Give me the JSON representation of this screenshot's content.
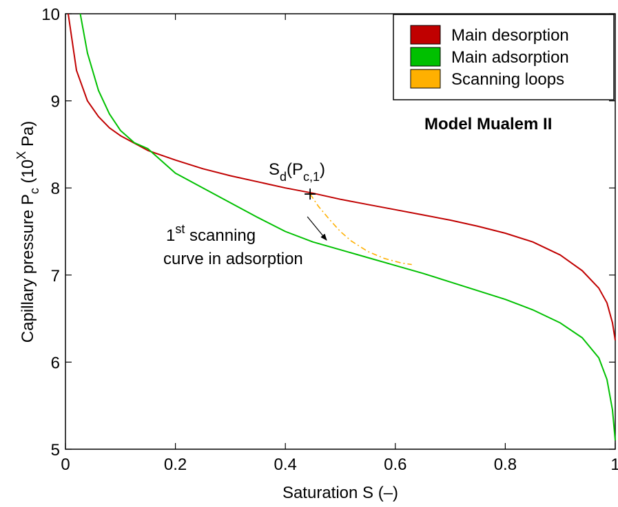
{
  "chart_data": {
    "type": "line",
    "xlabel": "Saturation S (–)",
    "ylabel": {
      "main": "Capillary pressure P",
      "sub": "c",
      "mid": " (10",
      "sup": "X",
      "tail": " Pa)"
    },
    "xlim": [
      0,
      1
    ],
    "ylim": [
      5,
      10
    ],
    "xticks": [
      0,
      0.2,
      0.4,
      0.6,
      0.8,
      1
    ],
    "xtick_labels": [
      "0",
      "0.2",
      "0.4",
      "0.6",
      "0.8",
      "1"
    ],
    "yticks": [
      5,
      6,
      7,
      8,
      9,
      10
    ],
    "ytick_labels": [
      "5",
      "6",
      "7",
      "8",
      "9",
      "10"
    ],
    "grid": false,
    "legend_position": "top-right",
    "series": [
      {
        "name": "Main desorption",
        "color": "#c00000",
        "x": [
          0.005,
          0.02,
          0.04,
          0.06,
          0.08,
          0.1,
          0.15,
          0.2,
          0.25,
          0.3,
          0.35,
          0.4,
          0.45,
          0.5,
          0.55,
          0.6,
          0.65,
          0.7,
          0.75,
          0.8,
          0.85,
          0.9,
          0.94,
          0.97,
          0.985,
          0.995,
          1.0
        ],
        "y": [
          10.0,
          9.35,
          9.0,
          8.82,
          8.69,
          8.6,
          8.43,
          8.32,
          8.22,
          8.14,
          8.07,
          8.0,
          7.94,
          7.87,
          7.81,
          7.75,
          7.69,
          7.63,
          7.56,
          7.48,
          7.38,
          7.23,
          7.05,
          6.85,
          6.68,
          6.45,
          6.25
        ]
      },
      {
        "name": "Main adsorption",
        "color": "#00c000",
        "x": [
          0.027,
          0.04,
          0.06,
          0.08,
          0.1,
          0.125,
          0.15,
          0.2,
          0.25,
          0.3,
          0.35,
          0.4,
          0.45,
          0.5,
          0.55,
          0.6,
          0.65,
          0.7,
          0.75,
          0.8,
          0.85,
          0.9,
          0.94,
          0.97,
          0.985,
          0.995,
          1.0
        ],
        "y": [
          10.0,
          9.55,
          9.12,
          8.85,
          8.66,
          8.52,
          8.45,
          8.17,
          8.0,
          7.83,
          7.66,
          7.5,
          7.38,
          7.29,
          7.2,
          7.11,
          7.02,
          6.92,
          6.82,
          6.72,
          6.6,
          6.45,
          6.28,
          6.05,
          5.8,
          5.45,
          5.1
        ]
      },
      {
        "name": "Scanning loops",
        "color": "#ffb000",
        "dashed": true,
        "x": [
          0.445,
          0.46,
          0.48,
          0.5,
          0.52,
          0.55,
          0.58,
          0.61,
          0.63
        ],
        "y": [
          7.93,
          7.79,
          7.64,
          7.5,
          7.39,
          7.27,
          7.19,
          7.14,
          7.12
        ]
      }
    ],
    "marker": {
      "x": 0.445,
      "y": 7.93,
      "symbol": "+"
    },
    "arrow": {
      "from_x": 0.44,
      "from_y": 7.67,
      "to_x": 0.475,
      "to_y": 7.4
    },
    "annotations": {
      "marker_label": {
        "main": "S",
        "sub1": "d",
        "mid": "(P",
        "sub2": "c,1",
        "tail": ")"
      },
      "scanning_label": {
        "line1_main": "1",
        "line1_sup": "st",
        "line1_tail": " scanning",
        "line2": "curve in adsorption"
      },
      "model_label": "Model Mualem II"
    }
  }
}
